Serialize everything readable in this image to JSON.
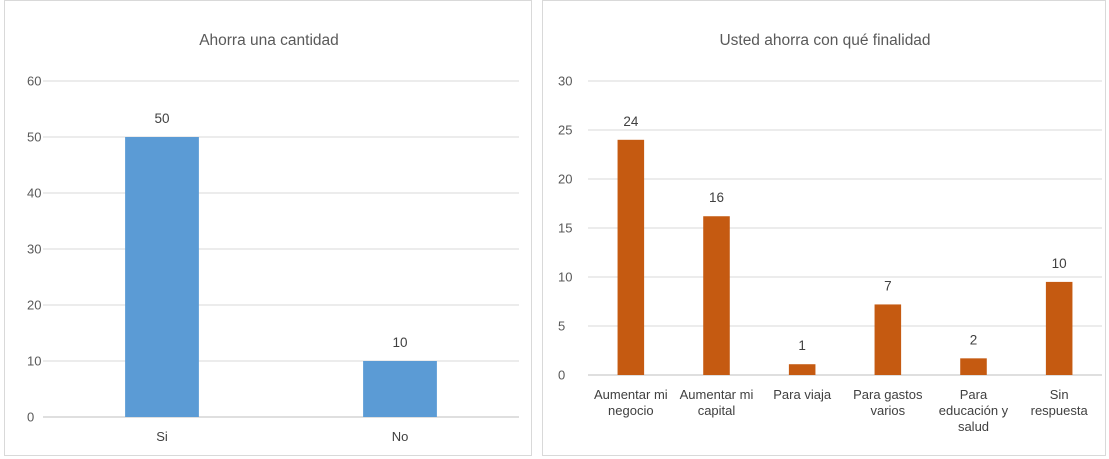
{
  "chart_data": [
    {
      "type": "bar",
      "title": "Ahorra una cantidad",
      "categories": [
        "Si",
        "No"
      ],
      "values": [
        50,
        10
      ],
      "data_labels": [
        "50",
        "10"
      ],
      "ylim": [
        0,
        60
      ],
      "yticks": [
        0,
        10,
        20,
        30,
        40,
        50,
        60
      ],
      "grid": true,
      "color": "#5b9bd5"
    },
    {
      "type": "bar",
      "title": "Usted ahorra con qué finalidad",
      "categories": [
        [
          "Aumentar mi",
          "negocio"
        ],
        [
          "Aumentar mi",
          "capital"
        ],
        [
          "Para viaja"
        ],
        [
          "Para gastos",
          "varios"
        ],
        [
          "Para",
          "educación y",
          "salud"
        ],
        [
          "Sin",
          "respuesta"
        ]
      ],
      "values": [
        24,
        16.2,
        1.1,
        7.2,
        1.7,
        9.5
      ],
      "data_labels": [
        "24",
        "16",
        "1",
        "7",
        "2",
        "10"
      ],
      "ylim": [
        0,
        30
      ],
      "yticks": [
        0,
        5,
        10,
        15,
        20,
        25,
        30
      ],
      "grid": true,
      "color": "#c55a11"
    }
  ]
}
